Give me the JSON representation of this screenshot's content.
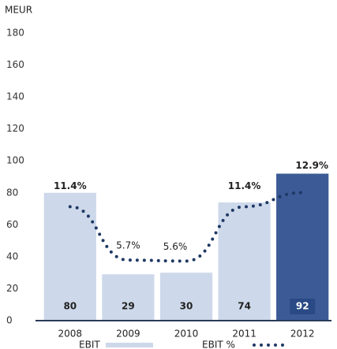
{
  "chart_data": {
    "type": "bar",
    "y_label": "MEUR",
    "categories": [
      "2008",
      "2009",
      "2010",
      "2011",
      "2012"
    ],
    "series": [
      {
        "name": "EBIT",
        "color": "#cdd9ea",
        "highlight_color": "#3b5a96",
        "values": [
          80,
          29,
          30,
          74,
          92
        ]
      },
      {
        "name": "EBIT %",
        "color": "#1f3864",
        "axis": "y2",
        "values": [
          11.4,
          5.7,
          5.6,
          11.4,
          12.9
        ],
        "value_labels": [
          "11.4%",
          "5.7%",
          "5.6%",
          "11.4%",
          "12.9%"
        ]
      }
    ],
    "ylim": [
      0,
      180
    ],
    "yticks": [
      0,
      20,
      40,
      60,
      80,
      100,
      120,
      140,
      160,
      180
    ],
    "y2lim": [
      0,
      20
    ]
  }
}
